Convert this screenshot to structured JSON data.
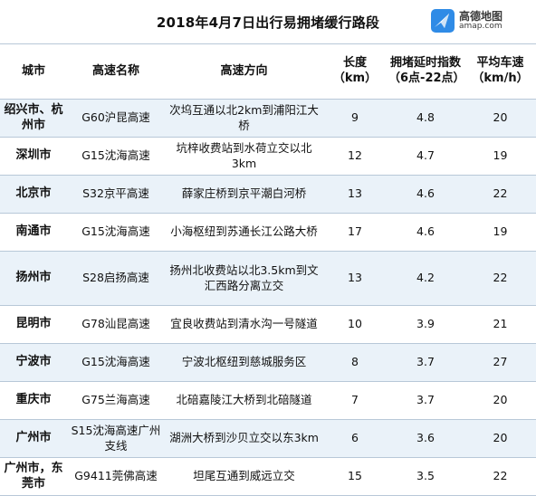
{
  "title": "2018年4月7日出行易拥堵缓行路段",
  "logo": {
    "cn": "高德地图",
    "en": "amap.com",
    "brand_color": "#2f8be6"
  },
  "headers": {
    "city": "城市",
    "highway": "高速名称",
    "direction": "高速方向",
    "length": "长度（km）",
    "delay": "拥堵延时指数（6点-22点）",
    "speed": "平均车速（km/h）"
  },
  "rows": [
    {
      "city": "绍兴市、杭州市",
      "highway": "G60沪昆高速",
      "direction": "次坞互通以北2km到浦阳江大桥",
      "length": "9",
      "delay": "4.8",
      "speed": "20"
    },
    {
      "city": "深圳市",
      "highway": "G15沈海高速",
      "direction": "坑梓收费站到水荷立交以北3km",
      "length": "12",
      "delay": "4.7",
      "speed": "19"
    },
    {
      "city": "北京市",
      "highway": "S32京平高速",
      "direction": "薛家庄桥到京平潮白河桥",
      "length": "13",
      "delay": "4.6",
      "speed": "22"
    },
    {
      "city": "南通市",
      "highway": "G15沈海高速",
      "direction": "小海枢纽到苏通长江公路大桥",
      "length": "17",
      "delay": "4.6",
      "speed": "19"
    },
    {
      "city": "扬州市",
      "highway": "S28启扬高速",
      "direction": "扬州北收费站以北3.5km到文汇西路分离立交",
      "length": "13",
      "delay": "4.2",
      "speed": "22"
    },
    {
      "city": "昆明市",
      "highway": "G78汕昆高速",
      "direction": "宜良收费站到清水沟一号隧道",
      "length": "10",
      "delay": "3.9",
      "speed": "21"
    },
    {
      "city": "宁波市",
      "highway": "G15沈海高速",
      "direction": "宁波北枢纽到慈城服务区",
      "length": "8",
      "delay": "3.7",
      "speed": "27"
    },
    {
      "city": "重庆市",
      "highway": "G75兰海高速",
      "direction": "北碚嘉陵江大桥到北碚隧道",
      "length": "7",
      "delay": "3.7",
      "speed": "20"
    },
    {
      "city": "广州市",
      "highway": "S15沈海高速广州支线",
      "direction": "湖洲大桥到沙贝立交以东3km",
      "length": "6",
      "delay": "3.6",
      "speed": "20"
    },
    {
      "city": "广州市，东莞市",
      "highway": "G9411莞佛高速",
      "direction": "坦尾互通到威远立交",
      "length": "15",
      "delay": "3.5",
      "speed": "22"
    }
  ]
}
